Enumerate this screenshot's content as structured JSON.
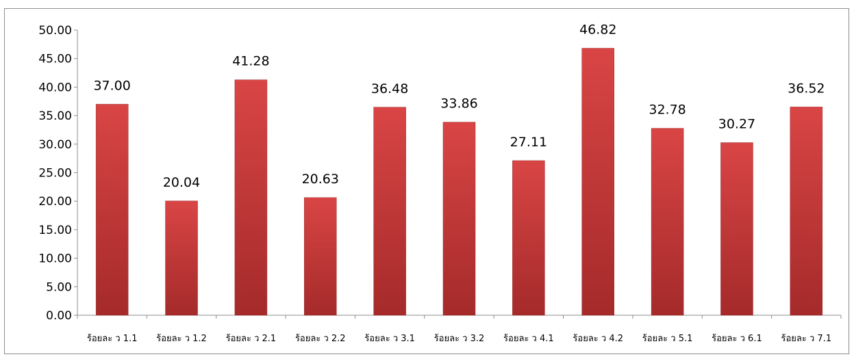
{
  "chart_data": {
    "type": "bar",
    "title": "",
    "xlabel": "",
    "ylabel": "",
    "categories": [
      "ร้อยละ ว 1.1",
      "ร้อยละ ว 1.2",
      "ร้อยละ ว 2.1",
      "ร้อยละ ว 2.2",
      "ร้อยละ ว 3.1",
      "ร้อยละ ว 3.2",
      "ร้อยละ ว 4.1",
      "ร้อยละ ว 4.2",
      "ร้อยละ ว 5.1",
      "ร้อยละ ว 6.1",
      "ร้อยละ ว 7.1"
    ],
    "values": [
      37.0,
      20.04,
      41.28,
      20.63,
      36.48,
      33.86,
      27.11,
      46.82,
      32.78,
      30.27,
      36.52
    ],
    "data_labels": [
      "37.00",
      "20.04",
      "41.28",
      "20.63",
      "36.48",
      "33.86",
      "27.11",
      "46.82",
      "32.78",
      "30.27",
      "36.52"
    ],
    "ylim": [
      0,
      50
    ],
    "yticks": [
      "0.00",
      "5.00",
      "10.00",
      "15.00",
      "20.00",
      "25.00",
      "30.00",
      "35.00",
      "40.00",
      "45.00",
      "50.00"
    ],
    "grid": false,
    "legend": "none",
    "bar_color_light": "#d94545",
    "bar_color_dark": "#a52a2a"
  }
}
